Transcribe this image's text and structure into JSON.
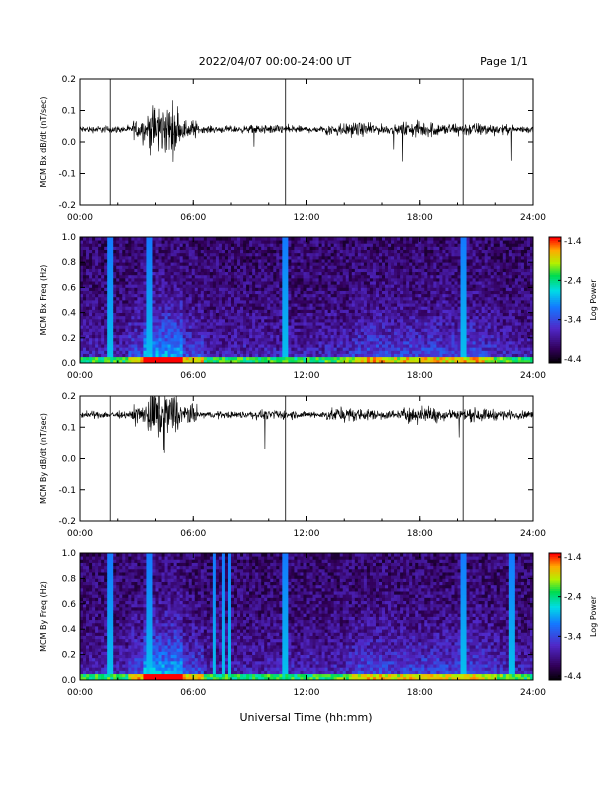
{
  "header": {
    "title": "2022/04/07  00:00-24:00 UT",
    "page": "Page 1/1"
  },
  "footer": {
    "xlabel": "Universal Time (hh:mm)"
  },
  "chart_data": [
    {
      "type": "line",
      "ylabel": "MCM Bx dB/dt (nT/sec)",
      "xlim": [
        0,
        24
      ],
      "ylim": [
        -0.2,
        0.2
      ],
      "xticks": [
        "00:00",
        "06:00",
        "12:00",
        "18:00",
        "24:00"
      ],
      "yticks": [
        "-0.2",
        "-0.1",
        "0.0",
        "0.1",
        "0.2"
      ],
      "baseline": 0.04,
      "spikes_hours": [
        1.6,
        10.9,
        20.3
      ],
      "series": [
        {
          "values": []
        }
      ]
    },
    {
      "type": "heatmap",
      "ylabel": "MCM Bx Freq (Hz)",
      "xlim": [
        0,
        24
      ],
      "ylim": [
        0,
        1.0
      ],
      "xticks": [
        "00:00",
        "06:00",
        "12:00",
        "18:00",
        "24:00"
      ],
      "yticks": [
        "0.0",
        "0.2",
        "0.4",
        "0.6",
        "0.8",
        "1.0"
      ],
      "colorbar": {
        "label": "Log Power",
        "ticks": [
          "-1.4",
          "-2.4",
          "-3.4",
          "-4.4"
        ]
      }
    },
    {
      "type": "line",
      "ylabel": "MCM By dB/dt (nT/sec)",
      "xlim": [
        0,
        24
      ],
      "ylim": [
        -0.2,
        0.2
      ],
      "xticks": [
        "00:00",
        "06:00",
        "12:00",
        "18:00",
        "24:00"
      ],
      "yticks": [
        "-0.2",
        "-0.1",
        "0.0",
        "0.1",
        "0.2"
      ],
      "baseline": 0.14,
      "spikes_hours": [
        1.6,
        10.9,
        20.3
      ],
      "series": [
        {
          "values": []
        }
      ]
    },
    {
      "type": "heatmap",
      "ylabel": "MCM By Freq (Hz)",
      "xlim": [
        0,
        24
      ],
      "ylim": [
        0,
        1.0
      ],
      "xticks": [
        "00:00",
        "06:00",
        "12:00",
        "18:00",
        "24:00"
      ],
      "yticks": [
        "0.0",
        "0.2",
        "0.4",
        "0.6",
        "0.8",
        "1.0"
      ],
      "colorbar": {
        "label": "Log Power",
        "ticks": [
          "-1.4",
          "-2.4",
          "-3.4",
          "-4.4"
        ]
      }
    }
  ]
}
